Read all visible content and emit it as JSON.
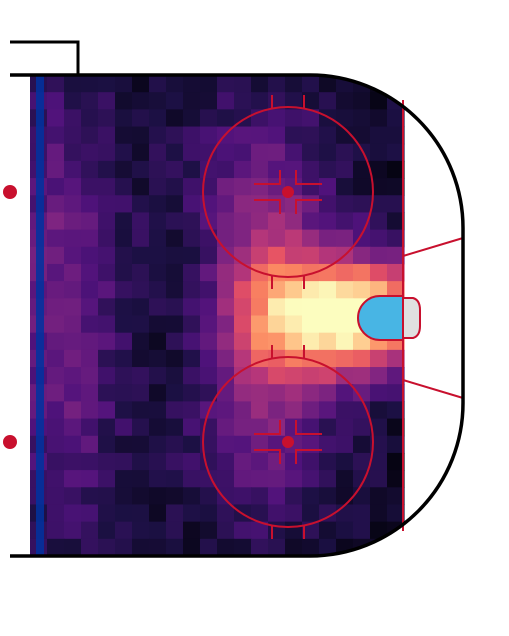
{
  "chart_data": {
    "type": "heatmap",
    "title": "",
    "xlabel": "",
    "ylabel": "",
    "colormap": "magma",
    "grid": false,
    "legend": "none",
    "value_range": [
      0,
      1
    ],
    "hotspots": [
      {
        "name": "slot",
        "x": 0.86,
        "y": 0.5,
        "peak": 1.0,
        "sx": 0.14,
        "sy": 0.085
      },
      {
        "name": "high-slot",
        "x": 0.64,
        "y": 0.5,
        "peak": 0.42,
        "sx": 0.1,
        "sy": 0.12
      },
      {
        "name": "left-faceoff",
        "x": 0.62,
        "y": 0.24,
        "peak": 0.24,
        "sx": 0.14,
        "sy": 0.14
      },
      {
        "name": "right-faceoff",
        "x": 0.62,
        "y": 0.76,
        "peak": 0.22,
        "sx": 0.14,
        "sy": 0.14
      },
      {
        "name": "left-point",
        "x": 0.08,
        "y": 0.3,
        "peak": 0.2,
        "sx": 0.12,
        "sy": 0.22
      },
      {
        "name": "right-point",
        "x": 0.08,
        "y": 0.7,
        "peak": 0.18,
        "sx": 0.12,
        "sy": 0.22
      }
    ],
    "background_level": 0.08
  },
  "colors": {
    "rink_line": "#c8102e",
    "boards": "#000000",
    "blue_line": "#0033a0",
    "crease": "#48b5e4",
    "net": "#e0e0e0"
  }
}
